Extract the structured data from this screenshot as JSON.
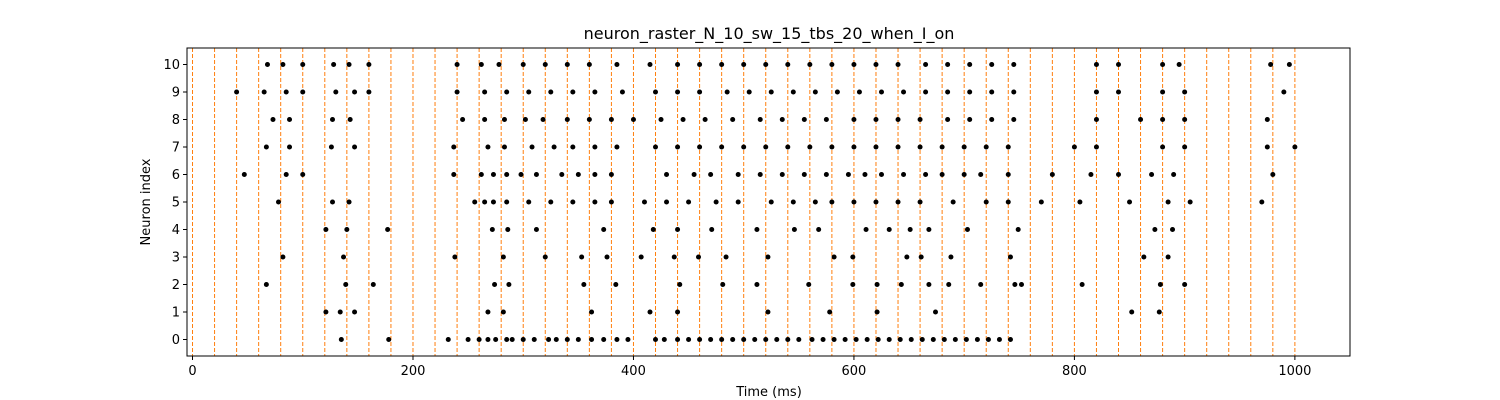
{
  "chart_data": {
    "type": "scatter",
    "title": "neuron_raster_N_10_sw_15_tbs_20_when_I_on",
    "xlabel": "Time (ms)",
    "ylabel": "Neuron index",
    "xlim": [
      -5,
      1050
    ],
    "ylim": [
      -0.6,
      10.6
    ],
    "xticks": [
      0,
      200,
      400,
      600,
      800,
      1000
    ],
    "yticks": [
      0,
      1,
      2,
      3,
      4,
      5,
      6,
      7,
      8,
      9,
      10
    ],
    "grid": false,
    "legend": "none",
    "marker_color": "#000000",
    "vline_color": "#ff7f0e",
    "vlines": [
      0,
      20,
      40,
      60,
      80,
      100,
      120,
      140,
      160,
      180,
      200,
      220,
      240,
      260,
      280,
      300,
      320,
      340,
      360,
      380,
      400,
      420,
      440,
      460,
      480,
      500,
      520,
      540,
      560,
      580,
      600,
      620,
      640,
      660,
      680,
      700,
      720,
      740,
      760,
      780,
      800,
      820,
      840,
      860,
      880,
      900,
      920,
      940,
      960,
      980,
      1000
    ],
    "spikes": [
      {
        "neuron": 0,
        "times": [
          135,
          178,
          232,
          250,
          260,
          268,
          275,
          285,
          290,
          300,
          310,
          323,
          330,
          340,
          350,
          362,
          373,
          385,
          395,
          420,
          428,
          440,
          450,
          460,
          470,
          480,
          490,
          500,
          510,
          520,
          530,
          540,
          550,
          562,
          572,
          582,
          592,
          602,
          612,
          622,
          632,
          642,
          652,
          662,
          672,
          682,
          692,
          702,
          712,
          722,
          732,
          742
        ]
      },
      {
        "neuron": 1,
        "times": [
          121,
          134,
          147,
          268,
          282,
          362,
          415,
          440,
          522,
          578,
          621,
          674,
          852,
          877
        ]
      },
      {
        "neuron": 2,
        "times": [
          67,
          139,
          164,
          274,
          287,
          355,
          384,
          442,
          481,
          512,
          559,
          599,
          621,
          643,
          668,
          686,
          715,
          746,
          752,
          807,
          878,
          900
        ]
      },
      {
        "neuron": 3,
        "times": [
          82,
          137,
          238,
          282,
          320,
          353,
          376,
          407,
          437,
          459,
          484,
          522,
          582,
          599,
          648,
          661,
          688,
          742,
          863,
          885
        ]
      },
      {
        "neuron": 4,
        "times": [
          121,
          140,
          177,
          272,
          286,
          312,
          373,
          418,
          440,
          471,
          512,
          546,
          568,
          611,
          632,
          651,
          668,
          703,
          749,
          873,
          889
        ]
      },
      {
        "neuron": 5,
        "times": [
          78,
          127,
          142,
          256,
          265,
          273,
          285,
          305,
          325,
          345,
          365,
          380,
          410,
          430,
          450,
          475,
          495,
          525,
          545,
          565,
          580,
          600,
          620,
          640,
          660,
          690,
          720,
          740,
          770,
          805,
          850,
          885,
          905,
          970
        ]
      },
      {
        "neuron": 6,
        "times": [
          47,
          85,
          100,
          237,
          262,
          273,
          285,
          298,
          312,
          335,
          350,
          365,
          380,
          430,
          455,
          470,
          495,
          515,
          535,
          555,
          575,
          595,
          610,
          625,
          645,
          665,
          680,
          700,
          715,
          740,
          780,
          815,
          840,
          870,
          890,
          980
        ]
      },
      {
        "neuron": 7,
        "times": [
          67,
          88,
          126,
          147,
          237,
          268,
          283,
          308,
          328,
          345,
          365,
          385,
          420,
          440,
          460,
          480,
          500,
          520,
          540,
          560,
          580,
          600,
          620,
          640,
          660,
          680,
          700,
          720,
          740,
          800,
          820,
          880,
          900,
          975,
          1000
        ]
      },
      {
        "neuron": 8,
        "times": [
          73,
          88,
          127,
          143,
          245,
          265,
          283,
          302,
          318,
          340,
          360,
          380,
          400,
          425,
          445,
          465,
          490,
          515,
          535,
          555,
          575,
          600,
          620,
          640,
          660,
          685,
          705,
          725,
          745,
          820,
          860,
          880,
          900,
          975
        ]
      },
      {
        "neuron": 9,
        "times": [
          40,
          65,
          85,
          100,
          130,
          147,
          160,
          240,
          265,
          285,
          305,
          325,
          345,
          365,
          390,
          420,
          440,
          460,
          485,
          505,
          525,
          545,
          565,
          585,
          605,
          625,
          645,
          665,
          685,
          705,
          725,
          745,
          820,
          840,
          880,
          900,
          990
        ]
      },
      {
        "neuron": 10,
        "times": [
          68,
          82,
          100,
          128,
          142,
          160,
          240,
          262,
          278,
          300,
          320,
          340,
          360,
          385,
          415,
          440,
          460,
          480,
          500,
          520,
          540,
          560,
          580,
          600,
          620,
          640,
          665,
          685,
          705,
          725,
          745,
          820,
          840,
          880,
          895,
          978,
          995
        ]
      }
    ]
  }
}
